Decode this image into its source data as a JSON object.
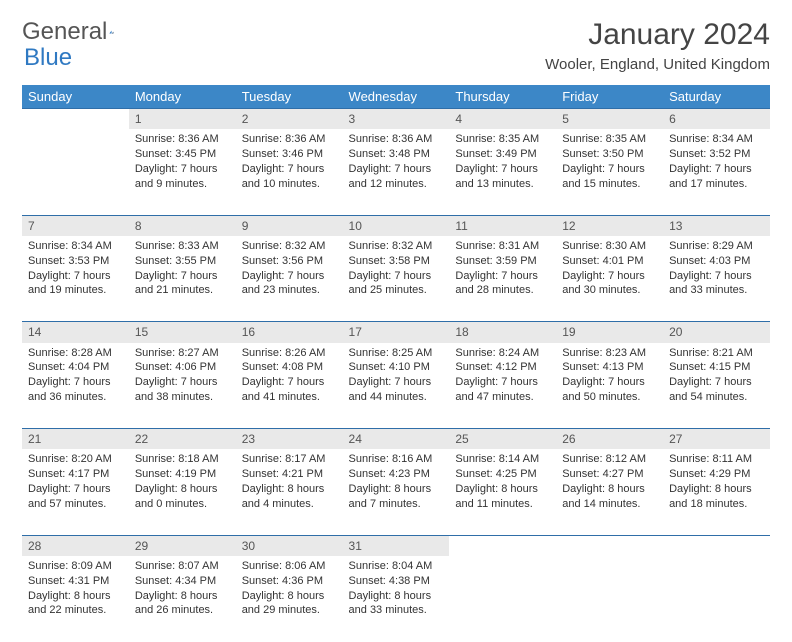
{
  "brand": {
    "part1": "General",
    "part2": "Blue"
  },
  "title": "January 2024",
  "location": "Wooler, England, United Kingdom",
  "colors": {
    "header_bg": "#3c87c7",
    "header_text": "#ffffff",
    "daynum_bg": "#e9e9e9",
    "row_border": "#2f6ea8",
    "brand_blue": "#2f79c2"
  },
  "weekdays": [
    "Sunday",
    "Monday",
    "Tuesday",
    "Wednesday",
    "Thursday",
    "Friday",
    "Saturday"
  ],
  "weeks": [
    [
      null,
      {
        "n": "1",
        "sr": "Sunrise: 8:36 AM",
        "ss": "Sunset: 3:45 PM",
        "dl": "Daylight: 7 hours and 9 minutes."
      },
      {
        "n": "2",
        "sr": "Sunrise: 8:36 AM",
        "ss": "Sunset: 3:46 PM",
        "dl": "Daylight: 7 hours and 10 minutes."
      },
      {
        "n": "3",
        "sr": "Sunrise: 8:36 AM",
        "ss": "Sunset: 3:48 PM",
        "dl": "Daylight: 7 hours and 12 minutes."
      },
      {
        "n": "4",
        "sr": "Sunrise: 8:35 AM",
        "ss": "Sunset: 3:49 PM",
        "dl": "Daylight: 7 hours and 13 minutes."
      },
      {
        "n": "5",
        "sr": "Sunrise: 8:35 AM",
        "ss": "Sunset: 3:50 PM",
        "dl": "Daylight: 7 hours and 15 minutes."
      },
      {
        "n": "6",
        "sr": "Sunrise: 8:34 AM",
        "ss": "Sunset: 3:52 PM",
        "dl": "Daylight: 7 hours and 17 minutes."
      }
    ],
    [
      {
        "n": "7",
        "sr": "Sunrise: 8:34 AM",
        "ss": "Sunset: 3:53 PM",
        "dl": "Daylight: 7 hours and 19 minutes."
      },
      {
        "n": "8",
        "sr": "Sunrise: 8:33 AM",
        "ss": "Sunset: 3:55 PM",
        "dl": "Daylight: 7 hours and 21 minutes."
      },
      {
        "n": "9",
        "sr": "Sunrise: 8:32 AM",
        "ss": "Sunset: 3:56 PM",
        "dl": "Daylight: 7 hours and 23 minutes."
      },
      {
        "n": "10",
        "sr": "Sunrise: 8:32 AM",
        "ss": "Sunset: 3:58 PM",
        "dl": "Daylight: 7 hours and 25 minutes."
      },
      {
        "n": "11",
        "sr": "Sunrise: 8:31 AM",
        "ss": "Sunset: 3:59 PM",
        "dl": "Daylight: 7 hours and 28 minutes."
      },
      {
        "n": "12",
        "sr": "Sunrise: 8:30 AM",
        "ss": "Sunset: 4:01 PM",
        "dl": "Daylight: 7 hours and 30 minutes."
      },
      {
        "n": "13",
        "sr": "Sunrise: 8:29 AM",
        "ss": "Sunset: 4:03 PM",
        "dl": "Daylight: 7 hours and 33 minutes."
      }
    ],
    [
      {
        "n": "14",
        "sr": "Sunrise: 8:28 AM",
        "ss": "Sunset: 4:04 PM",
        "dl": "Daylight: 7 hours and 36 minutes."
      },
      {
        "n": "15",
        "sr": "Sunrise: 8:27 AM",
        "ss": "Sunset: 4:06 PM",
        "dl": "Daylight: 7 hours and 38 minutes."
      },
      {
        "n": "16",
        "sr": "Sunrise: 8:26 AM",
        "ss": "Sunset: 4:08 PM",
        "dl": "Daylight: 7 hours and 41 minutes."
      },
      {
        "n": "17",
        "sr": "Sunrise: 8:25 AM",
        "ss": "Sunset: 4:10 PM",
        "dl": "Daylight: 7 hours and 44 minutes."
      },
      {
        "n": "18",
        "sr": "Sunrise: 8:24 AM",
        "ss": "Sunset: 4:12 PM",
        "dl": "Daylight: 7 hours and 47 minutes."
      },
      {
        "n": "19",
        "sr": "Sunrise: 8:23 AM",
        "ss": "Sunset: 4:13 PM",
        "dl": "Daylight: 7 hours and 50 minutes."
      },
      {
        "n": "20",
        "sr": "Sunrise: 8:21 AM",
        "ss": "Sunset: 4:15 PM",
        "dl": "Daylight: 7 hours and 54 minutes."
      }
    ],
    [
      {
        "n": "21",
        "sr": "Sunrise: 8:20 AM",
        "ss": "Sunset: 4:17 PM",
        "dl": "Daylight: 7 hours and 57 minutes."
      },
      {
        "n": "22",
        "sr": "Sunrise: 8:18 AM",
        "ss": "Sunset: 4:19 PM",
        "dl": "Daylight: 8 hours and 0 minutes."
      },
      {
        "n": "23",
        "sr": "Sunrise: 8:17 AM",
        "ss": "Sunset: 4:21 PM",
        "dl": "Daylight: 8 hours and 4 minutes."
      },
      {
        "n": "24",
        "sr": "Sunrise: 8:16 AM",
        "ss": "Sunset: 4:23 PM",
        "dl": "Daylight: 8 hours and 7 minutes."
      },
      {
        "n": "25",
        "sr": "Sunrise: 8:14 AM",
        "ss": "Sunset: 4:25 PM",
        "dl": "Daylight: 8 hours and 11 minutes."
      },
      {
        "n": "26",
        "sr": "Sunrise: 8:12 AM",
        "ss": "Sunset: 4:27 PM",
        "dl": "Daylight: 8 hours and 14 minutes."
      },
      {
        "n": "27",
        "sr": "Sunrise: 8:11 AM",
        "ss": "Sunset: 4:29 PM",
        "dl": "Daylight: 8 hours and 18 minutes."
      }
    ],
    [
      {
        "n": "28",
        "sr": "Sunrise: 8:09 AM",
        "ss": "Sunset: 4:31 PM",
        "dl": "Daylight: 8 hours and 22 minutes."
      },
      {
        "n": "29",
        "sr": "Sunrise: 8:07 AM",
        "ss": "Sunset: 4:34 PM",
        "dl": "Daylight: 8 hours and 26 minutes."
      },
      {
        "n": "30",
        "sr": "Sunrise: 8:06 AM",
        "ss": "Sunset: 4:36 PM",
        "dl": "Daylight: 8 hours and 29 minutes."
      },
      {
        "n": "31",
        "sr": "Sunrise: 8:04 AM",
        "ss": "Sunset: 4:38 PM",
        "dl": "Daylight: 8 hours and 33 minutes."
      },
      null,
      null,
      null
    ]
  ]
}
